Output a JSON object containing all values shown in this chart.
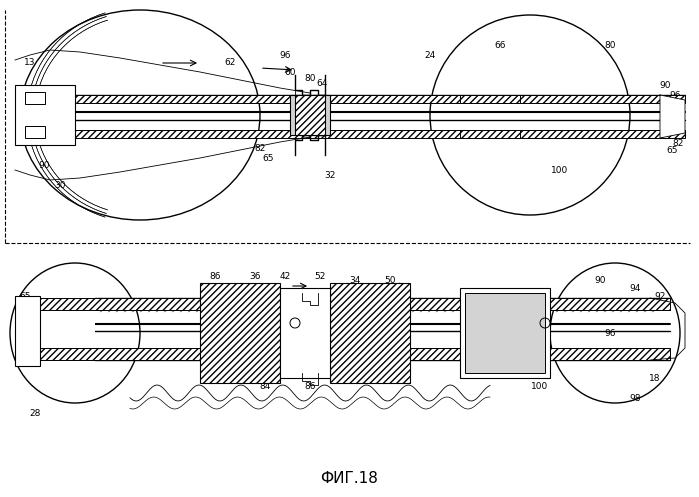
{
  "title": "ФИГ.18",
  "bg_color": "#ffffff",
  "line_color": "#000000",
  "hatch_color": "#000000",
  "fig_width": 6.99,
  "fig_height": 4.97,
  "dpi": 100
}
